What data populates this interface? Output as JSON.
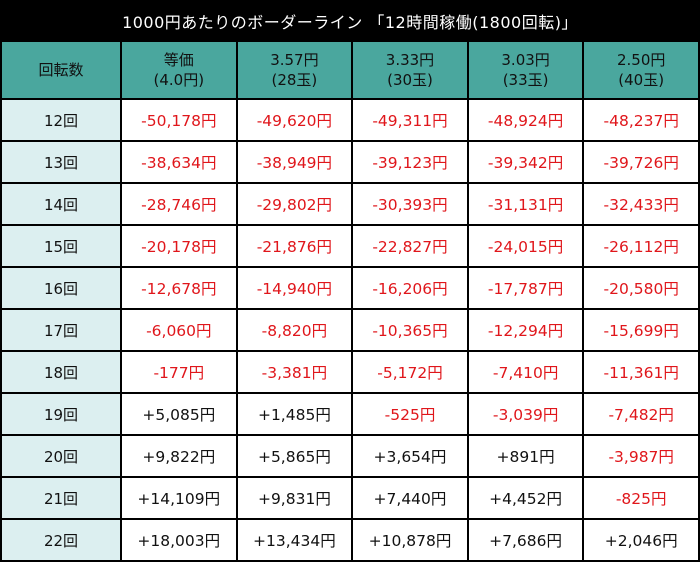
{
  "title": "1000円あたりのボーダーライン 「12時間稼働(1800回転)」",
  "colors": {
    "header": "#4aa79e",
    "row_label": "#dceff0",
    "negative": "#e0161b",
    "positive": "#111111"
  },
  "table": {
    "corner": "回転数",
    "columns": [
      {
        "line1": "等価",
        "line2": "(4.0円)"
      },
      {
        "line1": "3.57円",
        "line2": "(28玉)"
      },
      {
        "line1": "3.33円",
        "line2": "(30玉)"
      },
      {
        "line1": "3.03円",
        "line2": "(33玉)"
      },
      {
        "line1": "2.50円",
        "line2": "(40玉)"
      }
    ],
    "rows": [
      {
        "label": "12回",
        "values": [
          "-50,178円",
          "-49,620円",
          "-49,311円",
          "-48,924円",
          "-48,237円"
        ]
      },
      {
        "label": "13回",
        "values": [
          "-38,634円",
          "-38,949円",
          "-39,123円",
          "-39,342円",
          "-39,726円"
        ]
      },
      {
        "label": "14回",
        "values": [
          "-28,746円",
          "-29,802円",
          "-30,393円",
          "-31,131円",
          "-32,433円"
        ]
      },
      {
        "label": "15回",
        "values": [
          "-20,178円",
          "-21,876円",
          "-22,827円",
          "-24,015円",
          "-26,112円"
        ]
      },
      {
        "label": "16回",
        "values": [
          "-12,678円",
          "-14,940円",
          "-16,206円",
          "-17,787円",
          "-20,580円"
        ]
      },
      {
        "label": "17回",
        "values": [
          "-6,060円",
          "-8,820円",
          "-10,365円",
          "-12,294円",
          "-15,699円"
        ]
      },
      {
        "label": "18回",
        "values": [
          "-177円",
          "-3,381円",
          "-5,172円",
          "-7,410円",
          "-11,361円"
        ]
      },
      {
        "label": "19回",
        "values": [
          "+5,085円",
          "+1,485円",
          "-525円",
          "-3,039円",
          "-7,482円"
        ]
      },
      {
        "label": "20回",
        "values": [
          "+9,822円",
          "+5,865円",
          "+3,654円",
          "+891円",
          "-3,987円"
        ]
      },
      {
        "label": "21回",
        "values": [
          "+14,109円",
          "+9,831円",
          "+7,440円",
          "+4,452円",
          "-825円"
        ]
      },
      {
        "label": "22回",
        "values": [
          "+18,003円",
          "+13,434円",
          "+10,878円",
          "+7,686円",
          "+2,046円"
        ]
      }
    ]
  }
}
